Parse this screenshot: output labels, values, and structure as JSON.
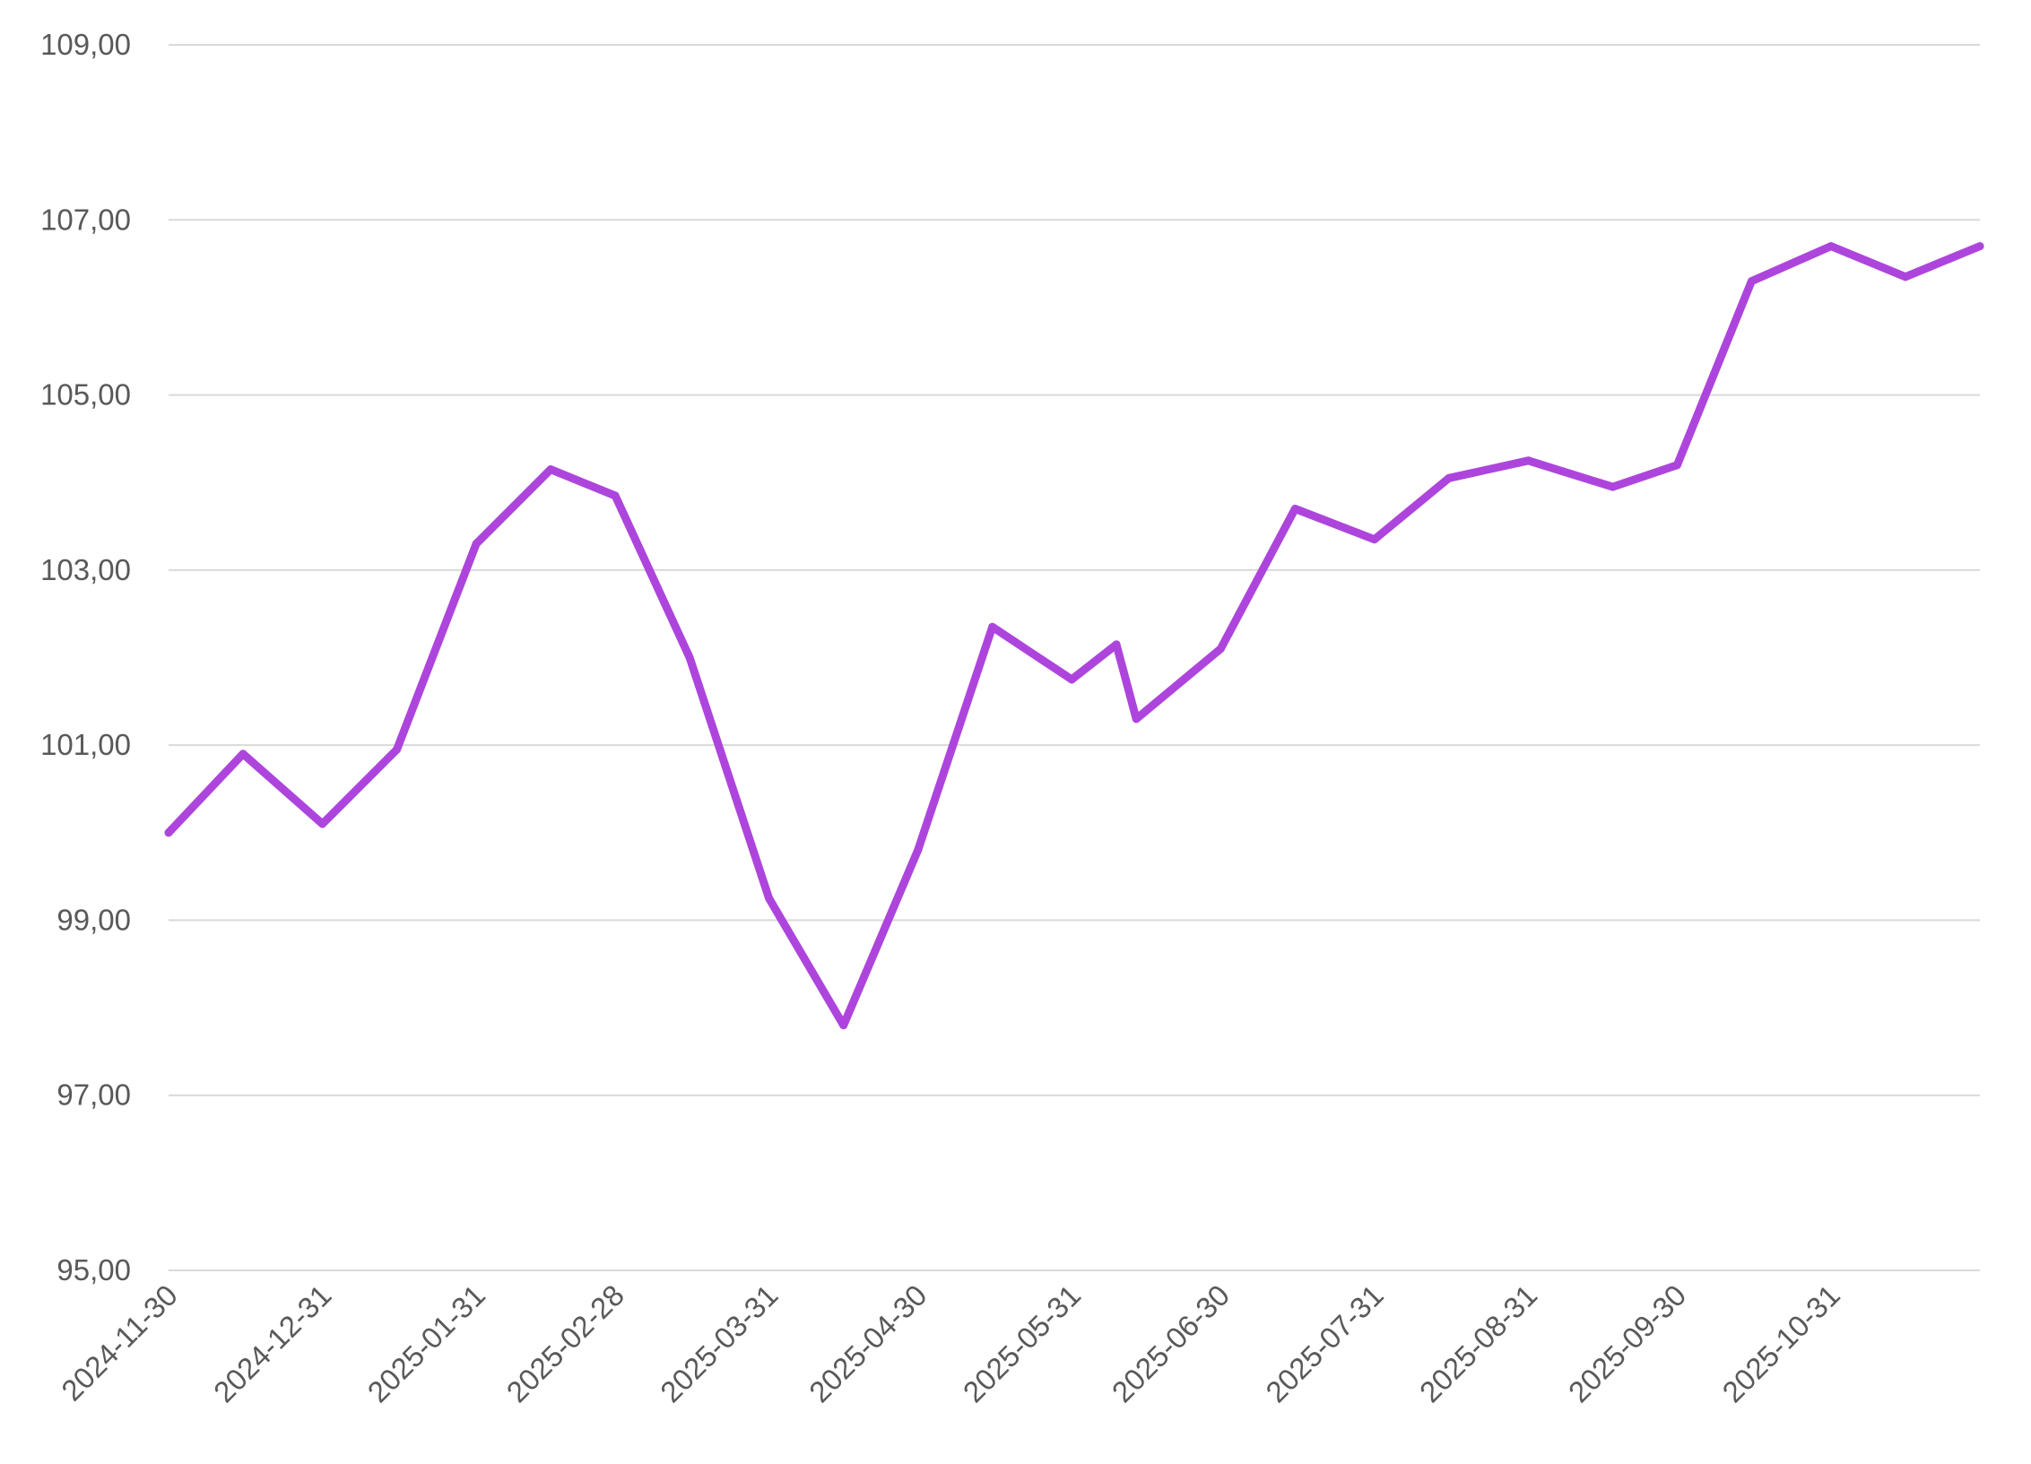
{
  "chart_data": {
    "type": "line",
    "title": "",
    "xlabel": "",
    "ylabel": "",
    "ylim": [
      95,
      109
    ],
    "y_ticks": [
      "95,00",
      "97,00",
      "99,00",
      "101,00",
      "103,00",
      "105,00",
      "107,00",
      "109,00"
    ],
    "x_tick_labels": [
      "2024-11-30",
      "2024-12-31",
      "2025-01-31",
      "2025-02-28",
      "2025-03-31",
      "2025-04-30",
      "2025-05-31",
      "2025-06-30",
      "2025-07-31",
      "2025-08-31",
      "2025-09-30",
      "2025-10-31"
    ],
    "grid": "horizontal",
    "legend": "none",
    "series": [
      {
        "color": "#ad45dd",
        "points": [
          {
            "x": "2024-11-30",
            "y": 100.0
          },
          {
            "x": "2024-12-15",
            "y": 100.9
          },
          {
            "x": "2024-12-31",
            "y": 100.1
          },
          {
            "x": "2025-01-15",
            "y": 100.95
          },
          {
            "x": "2025-01-31",
            "y": 103.3
          },
          {
            "x": "2025-02-15",
            "y": 104.15
          },
          {
            "x": "2025-02-28",
            "y": 103.85
          },
          {
            "x": "2025-03-15",
            "y": 102.0
          },
          {
            "x": "2025-03-31",
            "y": 99.25
          },
          {
            "x": "2025-04-15",
            "y": 97.8
          },
          {
            "x": "2025-04-30",
            "y": 99.8
          },
          {
            "x": "2025-05-15",
            "y": 102.35
          },
          {
            "x": "2025-05-31",
            "y": 101.75
          },
          {
            "x": "2025-06-09",
            "y": 102.15
          },
          {
            "x": "2025-06-13",
            "y": 101.3
          },
          {
            "x": "2025-06-30",
            "y": 102.1
          },
          {
            "x": "2025-07-15",
            "y": 103.7
          },
          {
            "x": "2025-07-31",
            "y": 103.35
          },
          {
            "x": "2025-08-15",
            "y": 104.05
          },
          {
            "x": "2025-08-31",
            "y": 104.25
          },
          {
            "x": "2025-09-17",
            "y": 103.95
          },
          {
            "x": "2025-09-30",
            "y": 104.2
          },
          {
            "x": "2025-10-15",
            "y": 106.3
          },
          {
            "x": "2025-10-31",
            "y": 106.7
          },
          {
            "x": "2025-11-15",
            "y": 106.35
          },
          {
            "x": "2025-11-30",
            "y": 106.7
          }
        ]
      }
    ]
  }
}
